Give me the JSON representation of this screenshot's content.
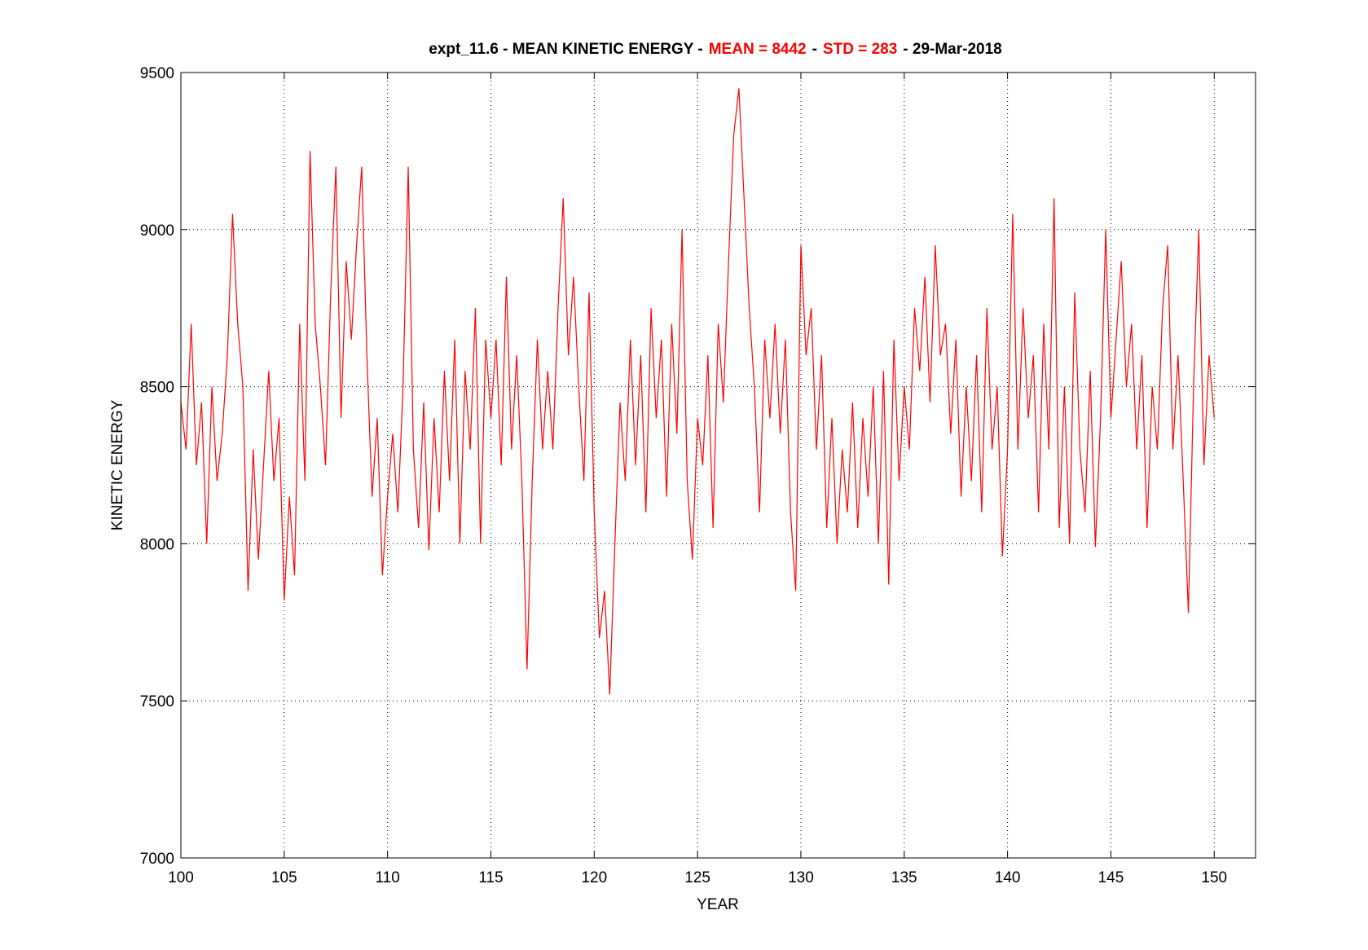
{
  "chart_data": {
    "type": "line",
    "title_parts": [
      {
        "text": "expt_11.6 - MEAN KINETIC ENERGY -",
        "color": "#000000"
      },
      {
        "text": "MEAN =  8442",
        "color": "#ff0000"
      },
      {
        "text": "-",
        "color": "#000000"
      },
      {
        "text": "STD =  283",
        "color": "#ff0000"
      },
      {
        "text": "- 29-Mar-2018",
        "color": "#000000"
      }
    ],
    "x_label": "YEAR",
    "y_label": "KINETIC ENERGY",
    "x": [
      100,
      100.25,
      100.5,
      100.75,
      101,
      101.25,
      101.5,
      101.75,
      102,
      102.25,
      102.5,
      102.75,
      103,
      103.25,
      103.5,
      103.75,
      104,
      104.25,
      104.5,
      104.75,
      105,
      105.25,
      105.5,
      105.75,
      106,
      106.25,
      106.5,
      106.75,
      107,
      107.25,
      107.5,
      107.75,
      108,
      108.25,
      108.5,
      108.75,
      109,
      109.25,
      109.5,
      109.75,
      110,
      110.25,
      110.5,
      110.75,
      111,
      111.25,
      111.5,
      111.75,
      112,
      112.25,
      112.5,
      112.75,
      113,
      113.25,
      113.5,
      113.75,
      114,
      114.25,
      114.5,
      114.75,
      115,
      115.25,
      115.5,
      115.75,
      116,
      116.25,
      116.5,
      116.75,
      117,
      117.25,
      117.5,
      117.75,
      118,
      118.25,
      118.5,
      118.75,
      119,
      119.25,
      119.5,
      119.75,
      120,
      120.25,
      120.5,
      120.75,
      121,
      121.25,
      121.5,
      121.75,
      122,
      122.25,
      122.5,
      122.75,
      123,
      123.25,
      123.5,
      123.75,
      124,
      124.25,
      124.5,
      124.75,
      125,
      125.25,
      125.5,
      125.75,
      126,
      126.25,
      126.5,
      126.75,
      127,
      127.25,
      127.5,
      127.75,
      128,
      128.25,
      128.5,
      128.75,
      129,
      129.25,
      129.5,
      129.75,
      130,
      130.25,
      130.5,
      130.75,
      131,
      131.25,
      131.5,
      131.75,
      132,
      132.25,
      132.5,
      132.75,
      133,
      133.25,
      133.5,
      133.75,
      134,
      134.25,
      134.5,
      134.75,
      135,
      135.25,
      135.5,
      135.75,
      136,
      136.25,
      136.5,
      136.75,
      137,
      137.25,
      137.5,
      137.75,
      138,
      138.25,
      138.5,
      138.75,
      139,
      139.25,
      139.5,
      139.75,
      140,
      140.25,
      140.5,
      140.75,
      141,
      141.25,
      141.5,
      141.75,
      142,
      142.25,
      142.5,
      142.75,
      143,
      143.25,
      143.5,
      143.75,
      144,
      144.25,
      144.5,
      144.75,
      145,
      145.25,
      145.5,
      145.75,
      146,
      146.25,
      146.5,
      146.75,
      147,
      147.25,
      147.5,
      147.75,
      148,
      148.25,
      148.5,
      148.75,
      149,
      149.25,
      149.5,
      149.75,
      150
    ],
    "series": [
      {
        "color": "#ff0000",
        "values": [
          8450,
          8300,
          8700,
          8250,
          8450,
          8000,
          8500,
          8200,
          8350,
          8600,
          9050,
          8700,
          8500,
          7850,
          8300,
          7950,
          8250,
          8550,
          8200,
          8400,
          7820,
          8150,
          7900,
          8700,
          8200,
          9250,
          8700,
          8500,
          8250,
          8800,
          9200,
          8400,
          8900,
          8650,
          8950,
          9200,
          8600,
          8150,
          8400,
          7900,
          8150,
          8350,
          8100,
          8500,
          9200,
          8300,
          8050,
          8450,
          7980,
          8400,
          8100,
          8550,
          8200,
          8650,
          8000,
          8550,
          8300,
          8750,
          8000,
          8650,
          8400,
          8650,
          8250,
          8850,
          8300,
          8600,
          8200,
          7600,
          8200,
          8650,
          8300,
          8550,
          8300,
          8750,
          9100,
          8600,
          8850,
          8500,
          8200,
          8800,
          8100,
          7700,
          7850,
          7520,
          8000,
          8450,
          8200,
          8650,
          8250,
          8600,
          8100,
          8750,
          8400,
          8650,
          8150,
          8700,
          8350,
          9000,
          8200,
          7950,
          8400,
          8250,
          8600,
          8050,
          8700,
          8450,
          8900,
          9300,
          9450,
          9100,
          8750,
          8500,
          8100,
          8650,
          8400,
          8700,
          8350,
          8650,
          8100,
          7850,
          8950,
          8600,
          8750,
          8300,
          8600,
          8050,
          8400,
          8000,
          8300,
          8100,
          8450,
          8050,
          8400,
          8150,
          8500,
          8000,
          8550,
          7870,
          8650,
          8200,
          8500,
          8300,
          8750,
          8550,
          8850,
          8450,
          8950,
          8600,
          8700,
          8350,
          8650,
          8150,
          8500,
          8200,
          8600,
          8100,
          8750,
          8300,
          8500,
          7960,
          8300,
          9050,
          8300,
          8750,
          8400,
          8600,
          8100,
          8700,
          8300,
          9100,
          8050,
          8500,
          8000,
          8800,
          8300,
          8100,
          8550,
          7990,
          8400,
          9000,
          8400,
          8650,
          8900,
          8500,
          8700,
          8300,
          8600,
          8050,
          8500,
          8300,
          8750,
          8950,
          8300,
          8600,
          8200,
          7780,
          8500,
          9000,
          8250,
          8600,
          8400
        ]
      }
    ],
    "xlim": [
      100,
      152
    ],
    "xticks": [
      100,
      105,
      110,
      115,
      120,
      125,
      130,
      135,
      140,
      145,
      150
    ],
    "ylim": [
      7000,
      9500
    ],
    "yticks": [
      7000,
      7500,
      8000,
      8500,
      9000,
      9500
    ],
    "grid": true
  }
}
